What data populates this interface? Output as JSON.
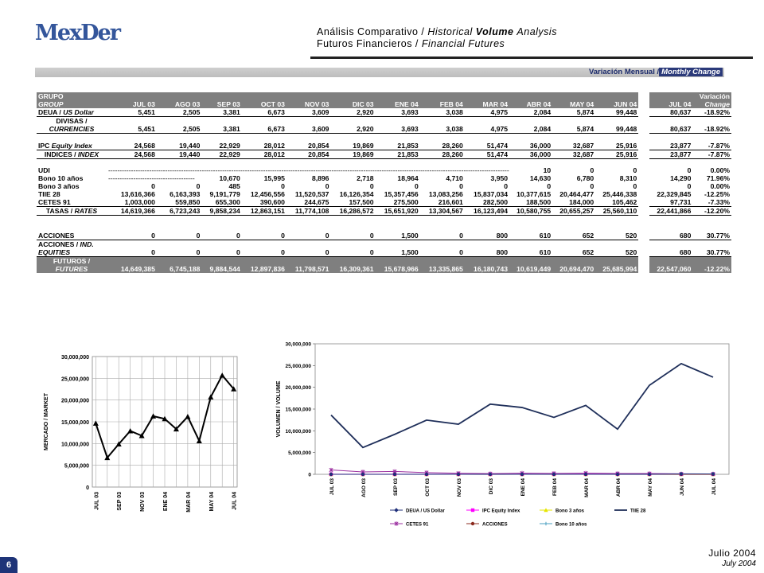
{
  "logo": {
    "text": "MexDer"
  },
  "header": {
    "line1_es": "Análisis Comparativo /",
    "line1_en_a": "Historical",
    "line1_en_b": "Volume",
    "line1_en_c": "Analysis",
    "line2_es": "Futuros Financieros /",
    "line2_en": "Financial Futures"
  },
  "banner": {
    "es": "Variación Mensual /",
    "en": "Monthly Change"
  },
  "table": {
    "group_es": "GRUPO",
    "group_en": "GROUP",
    "variation_es": "Variación",
    "variation_en": "Change",
    "months": [
      "JUL 03",
      "AGO 03",
      "SEP 03",
      "OCT 03",
      "NOV 03",
      "DIC 03",
      "ENE 04",
      "FEB 04",
      "MAR 04",
      "ABR 04",
      "MAY 04",
      "JUN 04"
    ],
    "last_month": "JUL 04",
    "rows": {
      "deua": {
        "label_es": "DEUA /",
        "label_en": "US Dollar",
        "values": [
          "5,451",
          "2,505",
          "3,381",
          "6,673",
          "3,609",
          "2,920",
          "3,693",
          "3,038",
          "4,975",
          "2,084",
          "5,874",
          "99,448"
        ],
        "last": "80,637",
        "change": "-18.92%"
      },
      "divisas": {
        "label_es": "DIVISAS /",
        "label_en": "CURRENCIES",
        "values": [
          "5,451",
          "2,505",
          "3,381",
          "6,673",
          "3,609",
          "2,920",
          "3,693",
          "3,038",
          "4,975",
          "2,084",
          "5,874",
          "99,448"
        ],
        "last": "80,637",
        "change": "-18.92%"
      },
      "ipc": {
        "label_es": "IPC",
        "label_en": "Equity Index",
        "values": [
          "24,568",
          "19,440",
          "22,929",
          "28,012",
          "20,854",
          "19,869",
          "21,853",
          "28,260",
          "51,474",
          "36,000",
          "32,687",
          "25,916"
        ],
        "last": "23,877",
        "change": "-7.87%"
      },
      "indices": {
        "label_es": "INDICES /",
        "label_en": "INDEX",
        "values": [
          "24,568",
          "19,440",
          "22,929",
          "28,012",
          "20,854",
          "19,869",
          "21,853",
          "28,260",
          "51,474",
          "36,000",
          "32,687",
          "25,916"
        ],
        "last": "23,877",
        "change": "-7.87%"
      },
      "udi": {
        "label": "UDI",
        "dashes": "--------------------------------------------------------------------------------------------------------------------------------------------------------------------------------------------------------- 10",
        "values_tail": [
          "10",
          "0",
          "0"
        ],
        "last": "0",
        "change": "0.00%"
      },
      "bono10": {
        "label": "Bono 10 años",
        "dashes": "--------------------------------------",
        "values": [
          "10,670",
          "15,995",
          "8,896",
          "2,718",
          "18,964",
          "4,710",
          "3,950",
          "14,630",
          "6,780",
          "8,310"
        ],
        "last": "14,290",
        "change": "71.96%"
      },
      "bono3": {
        "label": "Bono 3 años",
        "values": [
          "0",
          "0",
          "485",
          "0",
          "0",
          "0",
          "0",
          "0",
          "0",
          "0",
          "0",
          "0"
        ],
        "last": "0",
        "change": "0.00%"
      },
      "tiie": {
        "label": "TIIE 28",
        "values": [
          "13,616,366",
          "6,163,393",
          "9,191,779",
          "12,456,556",
          "11,520,537",
          "16,126,354",
          "15,357,456",
          "13,083,256",
          "15,837,034",
          "10,377,615",
          "20,464,477",
          "25,446,338"
        ],
        "last": "22,329,845",
        "change": "-12.25%"
      },
      "cetes": {
        "label": "CETES 91",
        "values": [
          "1,003,000",
          "559,850",
          "655,300",
          "390,600",
          "244,675",
          "157,500",
          "275,500",
          "216,601",
          "282,500",
          "188,500",
          "184,000",
          "105,462"
        ],
        "last": "97,731",
        "change": "-7.33%"
      },
      "tasas": {
        "label_es": "TASAS /",
        "label_en": "RATES",
        "values": [
          "14,619,366",
          "6,723,243",
          "9,858,234",
          "12,863,151",
          "11,774,108",
          "16,286,572",
          "15,651,920",
          "13,304,567",
          "16,123,494",
          "10,580,755",
          "20,655,257",
          "25,560,110"
        ],
        "last": "22,441,866",
        "change": "-12.20%"
      },
      "acciones": {
        "label": "ACCIONES",
        "values": [
          "0",
          "0",
          "0",
          "0",
          "0",
          "0",
          "1,500",
          "0",
          "800",
          "610",
          "652",
          "520"
        ],
        "last": "680",
        "change": "30.77%"
      },
      "acciones_ind": {
        "label_es": "ACCIONES /",
        "label_en": "IND.",
        "label_en2": "EQUITIES",
        "values": [
          "0",
          "0",
          "0",
          "0",
          "0",
          "0",
          "1,500",
          "0",
          "800",
          "610",
          "652",
          "520"
        ],
        "last": "680",
        "change": "30.77%"
      },
      "futuros": {
        "label_es": "FUTUROS /",
        "label_en": "FUTURES",
        "values": [
          "14,649,385",
          "6,745,188",
          "9,884,544",
          "12,897,836",
          "11,798,571",
          "16,309,361",
          "15,678,966",
          "13,335,865",
          "16,180,743",
          "10,619,449",
          "20,694,470",
          "25,685,994"
        ],
        "last": "22,547,060",
        "change": "-12.22%"
      }
    }
  },
  "chart_data": [
    {
      "type": "line",
      "ylabel": "MERCADO / MARKET",
      "ylim": [
        0,
        30000000
      ],
      "yticks": [
        "0",
        "5,000,000",
        "10,000,000",
        "15,000,000",
        "20,000,000",
        "25,000,000",
        "30,000,000"
      ],
      "categories": [
        "JUL 03",
        "AGO 03",
        "SEP 03",
        "OCT 03",
        "NOV 03",
        "DIC 03",
        "ENE 04",
        "FEB 04",
        "MAR 04",
        "ABR 04",
        "MAY 04",
        "JUN 04",
        "JUL 04"
      ],
      "xtick_labels": [
        "JUL 03",
        "SEP 03",
        "NOV 03",
        "ENE 04",
        "MAR 04",
        "MAY 04",
        "JUL 04"
      ],
      "series": [
        {
          "values": [
            14649385,
            6745188,
            9884544,
            12897836,
            11798571,
            16309361,
            15678966,
            13335865,
            16180743,
            10619449,
            20694470,
            25685994,
            22547060
          ],
          "color": "#000000"
        }
      ],
      "grid": true
    },
    {
      "type": "line",
      "ylabel": "VOLUMEN / VOLUME",
      "ylim": [
        0,
        30000000
      ],
      "yticks": [
        "0",
        "5,000,000",
        "10,000,000",
        "15,000,000",
        "20,000,000",
        "25,000,000",
        "30,000,000"
      ],
      "categories": [
        "JUL 03",
        "AGO 03",
        "SEP 03",
        "OCT 03",
        "NOV 03",
        "DIC 03",
        "ENE 04",
        "FEB 04",
        "MAR 04",
        "ABR 04",
        "MAY 04",
        "JUN 04",
        "JUL 04"
      ],
      "series": [
        {
          "name": "DEUA / US Dollar",
          "color": "#1f2f7a",
          "marker": "diamond",
          "values": [
            5451,
            2505,
            3381,
            6673,
            3609,
            2920,
            3693,
            3038,
            4975,
            2084,
            5874,
            99448,
            80637
          ]
        },
        {
          "name": "IPC Equity Index",
          "color": "#ff00ff",
          "marker": "square",
          "values": [
            24568,
            19440,
            22929,
            28012,
            20854,
            19869,
            21853,
            28260,
            51474,
            36000,
            32687,
            25916,
            23877
          ]
        },
        {
          "name": "Bono 3 años",
          "color": "#e6e600",
          "marker": "triangle",
          "values": [
            0,
            0,
            485,
            0,
            0,
            0,
            0,
            0,
            0,
            0,
            0,
            0,
            0
          ]
        },
        {
          "name": "TIIE 28",
          "color": "#1f2f5a",
          "marker": "none",
          "values": [
            13616366,
            6163393,
            9191779,
            12456556,
            11520537,
            16126354,
            15357456,
            13083256,
            15837034,
            10377615,
            20464477,
            25446338,
            22329845
          ]
        },
        {
          "name": "CETES 91",
          "color": "#9b2fa0",
          "marker": "star",
          "values": [
            1003000,
            559850,
            655300,
            390600,
            244675,
            157500,
            275500,
            216601,
            282500,
            188500,
            184000,
            105462,
            97731
          ]
        },
        {
          "name": "ACCIONES",
          "color": "#8b2b1f",
          "marker": "circle",
          "values": [
            0,
            0,
            0,
            0,
            0,
            0,
            1500,
            0,
            800,
            610,
            652,
            520,
            680
          ]
        },
        {
          "name": "Bono 10 años",
          "color": "#4a9fc0",
          "marker": "plus",
          "values": [
            0,
            0,
            10670,
            15995,
            8896,
            2718,
            18964,
            4710,
            3950,
            14630,
            6780,
            8310,
            14290
          ]
        }
      ],
      "legend": "bottom",
      "grid": false
    }
  ],
  "footer": {
    "page": "6",
    "date_es": "Julio 2004",
    "date_en": "July 2004"
  }
}
